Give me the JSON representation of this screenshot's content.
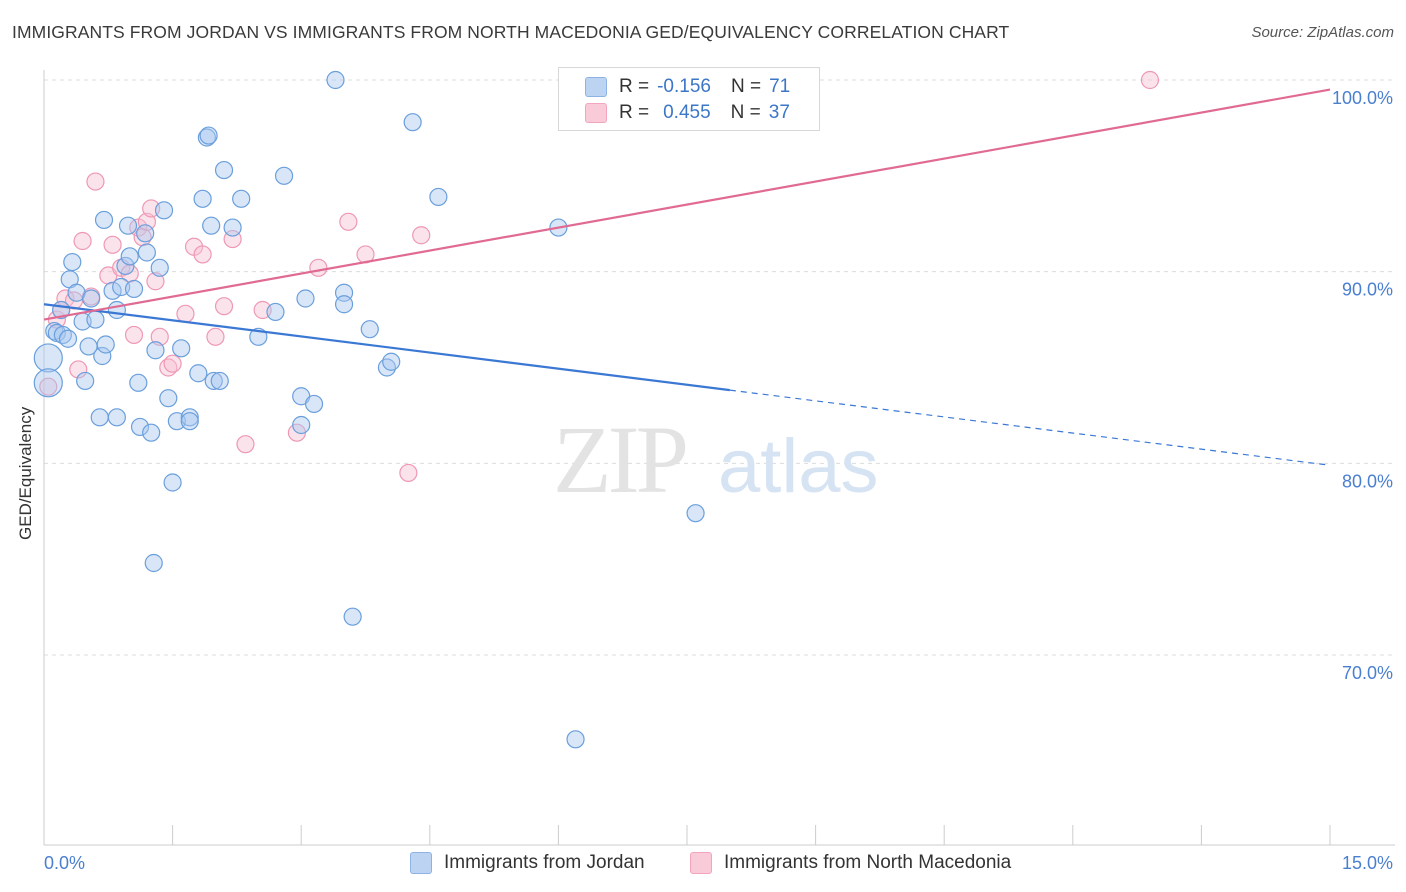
{
  "title": "IMMIGRANTS FROM JORDAN VS IMMIGRANTS FROM NORTH MACEDONIA GED/EQUIVALENCY CORRELATION CHART",
  "source": "Source: ZipAtlas.com",
  "watermark": {
    "zip": "ZIP",
    "atlas": "atlas"
  },
  "legend": {
    "rows": [
      {
        "r_label": "R =",
        "r_value": "-0.156",
        "n_label": "N =",
        "n_value": "71",
        "color": "#a8c8f0"
      },
      {
        "r_label": "R =",
        "r_value": "0.455",
        "n_label": "N =",
        "n_value": "37",
        "color": "#f7b8cb"
      }
    ]
  },
  "bottom_legend": {
    "series1": "Immigrants from Jordan",
    "series2": "Immigrants from North Macedonia"
  },
  "colors": {
    "blue_fill": "#a8c8f0",
    "blue_stroke": "#6a9fdc",
    "blue_line": "#3a78d4",
    "pink_fill": "#f7c0d2",
    "pink_stroke": "#ee98b4",
    "pink_line": "#e06a92",
    "axis_text": "#4a7fd0",
    "grid": "#dcdcdc"
  },
  "chart_data": {
    "type": "scatter",
    "title": "IMMIGRANTS FROM JORDAN VS IMMIGRANTS FROM NORTH MACEDONIA GED/EQUIVALENCY CORRELATION CHART",
    "xlabel": "",
    "ylabel": "GED/Equivalency",
    "xlim": [
      0,
      15
    ],
    "ylim": [
      60,
      102
    ],
    "x_tick_labels": [
      "0.0%",
      "15.0%"
    ],
    "y_ticks": [
      70,
      80,
      90,
      100
    ],
    "y_tick_labels": [
      "70.0%",
      "80.0%",
      "90.0%",
      "100.0%"
    ],
    "grid": true,
    "legend_position": "top-center",
    "series": [
      {
        "name": "Immigrants from Jordan",
        "r": -0.156,
        "n": 71,
        "trend": {
          "x0": 0,
          "y0": 88.3,
          "x_solid_end": 8.0,
          "x1": 15,
          "y1": 79.9
        },
        "points": [
          [
            0.05,
            85.5
          ],
          [
            0.05,
            84.2
          ],
          [
            0.12,
            86.9
          ],
          [
            0.15,
            86.8
          ],
          [
            0.2,
            88.0
          ],
          [
            0.22,
            86.7
          ],
          [
            0.28,
            86.5
          ],
          [
            0.3,
            89.6
          ],
          [
            0.33,
            90.5
          ],
          [
            0.38,
            88.9
          ],
          [
            0.45,
            87.4
          ],
          [
            0.48,
            84.3
          ],
          [
            0.52,
            86.1
          ],
          [
            0.55,
            88.6
          ],
          [
            0.6,
            87.5
          ],
          [
            0.65,
            82.4
          ],
          [
            0.68,
            85.6
          ],
          [
            0.72,
            86.2
          ],
          [
            0.7,
            92.7
          ],
          [
            0.85,
            88.0
          ],
          [
            0.8,
            89.0
          ],
          [
            0.85,
            82.4
          ],
          [
            0.9,
            89.2
          ],
          [
            0.95,
            90.3
          ],
          [
            0.98,
            92.4
          ],
          [
            1.0,
            90.8
          ],
          [
            1.05,
            89.1
          ],
          [
            1.1,
            84.2
          ],
          [
            1.12,
            81.9
          ],
          [
            1.18,
            92.0
          ],
          [
            1.2,
            91.0
          ],
          [
            1.25,
            81.6
          ],
          [
            1.28,
            74.8
          ],
          [
            1.3,
            85.9
          ],
          [
            1.35,
            90.2
          ],
          [
            1.4,
            93.2
          ],
          [
            1.45,
            83.4
          ],
          [
            1.5,
            79.0
          ],
          [
            1.55,
            82.2
          ],
          [
            1.6,
            86.0
          ],
          [
            1.7,
            82.4
          ],
          [
            1.8,
            84.7
          ],
          [
            1.85,
            93.8
          ],
          [
            1.9,
            97.0
          ],
          [
            1.92,
            97.1
          ],
          [
            1.95,
            92.4
          ],
          [
            1.98,
            84.3
          ],
          [
            2.05,
            84.3
          ],
          [
            2.1,
            95.3
          ],
          [
            2.2,
            92.3
          ],
          [
            2.3,
            93.8
          ],
          [
            2.5,
            86.6
          ],
          [
            2.7,
            87.9
          ],
          [
            2.8,
            95.0
          ],
          [
            3.0,
            83.5
          ],
          [
            3.05,
            88.6
          ],
          [
            3.0,
            82.0
          ],
          [
            3.15,
            83.1
          ],
          [
            3.4,
            100.0
          ],
          [
            3.5,
            88.9
          ],
          [
            3.5,
            88.3
          ],
          [
            3.8,
            87.0
          ],
          [
            4.0,
            85.0
          ],
          [
            4.05,
            85.3
          ],
          [
            4.3,
            97.8
          ],
          [
            4.6,
            93.9
          ],
          [
            6.0,
            92.3
          ],
          [
            6.2,
            65.6
          ],
          [
            7.6,
            77.4
          ],
          [
            3.6,
            72.0
          ],
          [
            1.7,
            82.2
          ]
        ]
      },
      {
        "name": "Immigrants from North Macedonia",
        "r": 0.455,
        "n": 37,
        "trend": {
          "x0": 0,
          "y0": 87.5,
          "x1": 15,
          "y1": 99.5
        },
        "points": [
          [
            0.05,
            84.0
          ],
          [
            0.15,
            87.5
          ],
          [
            0.2,
            88.0
          ],
          [
            0.25,
            88.6
          ],
          [
            0.35,
            88.5
          ],
          [
            0.4,
            84.9
          ],
          [
            0.45,
            91.6
          ],
          [
            0.55,
            88.7
          ],
          [
            0.6,
            94.7
          ],
          [
            0.75,
            89.8
          ],
          [
            0.8,
            91.4
          ],
          [
            0.9,
            90.2
          ],
          [
            1.0,
            89.9
          ],
          [
            1.05,
            86.7
          ],
          [
            1.1,
            92.3
          ],
          [
            1.15,
            91.8
          ],
          [
            1.2,
            92.6
          ],
          [
            1.25,
            93.3
          ],
          [
            1.3,
            89.5
          ],
          [
            1.35,
            86.6
          ],
          [
            1.45,
            85.0
          ],
          [
            1.5,
            85.2
          ],
          [
            1.65,
            87.8
          ],
          [
            1.75,
            91.3
          ],
          [
            1.85,
            90.9
          ],
          [
            2.0,
            86.6
          ],
          [
            2.1,
            88.2
          ],
          [
            2.2,
            91.7
          ],
          [
            2.35,
            81.0
          ],
          [
            2.55,
            88.0
          ],
          [
            2.95,
            81.6
          ],
          [
            3.2,
            90.2
          ],
          [
            3.55,
            92.6
          ],
          [
            3.75,
            90.9
          ],
          [
            4.25,
            79.5
          ],
          [
            4.4,
            91.9
          ],
          [
            12.9,
            100.0
          ]
        ]
      }
    ]
  }
}
